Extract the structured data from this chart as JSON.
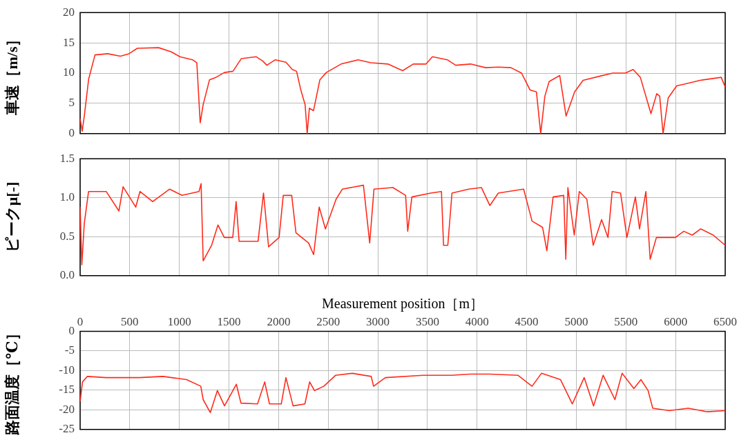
{
  "chart_data": [
    {
      "type": "line",
      "ylabel": "車速［m/s］",
      "color": "#ff2a1a",
      "grid": true,
      "tick_labels": "y",
      "xlim": [
        0,
        6500
      ],
      "xticks": [
        0,
        500,
        1000,
        1500,
        2000,
        2500,
        3000,
        3500,
        4000,
        4500,
        5000,
        5500,
        6000,
        6500
      ],
      "ylim": [
        0,
        20
      ],
      "yticks": [
        0,
        5,
        10,
        15,
        20
      ],
      "x": [
        0,
        21,
        43,
        86,
        150,
        278,
        406,
        492,
        577,
        791,
        920,
        1005,
        1133,
        1176,
        1210,
        1240,
        1304,
        1369,
        1454,
        1540,
        1625,
        1775,
        1839,
        1882,
        1967,
        2074,
        2138,
        2181,
        2224,
        2267,
        2288,
        2310,
        2352,
        2416,
        2481,
        2630,
        2801,
        2930,
        3101,
        3250,
        3357,
        3486,
        3550,
        3700,
        3785,
        3935,
        4085,
        4213,
        4341,
        4448,
        4534,
        4598,
        4641,
        4683,
        4726,
        4833,
        4897,
        4983,
        5068,
        5239,
        5367,
        5495,
        5572,
        5645,
        5752,
        5810,
        5840,
        5874,
        5926,
        6011,
        6118,
        6246,
        6374,
        6460,
        6500
      ],
      "values": [
        2.5,
        0.4,
        3,
        9,
        13,
        13.2,
        12.8,
        13.2,
        14.1,
        14.2,
        13.5,
        12.7,
        12.2,
        11.7,
        1.8,
        4.8,
        8.9,
        9.3,
        10.1,
        10.3,
        12.4,
        12.7,
        12,
        11.3,
        12.2,
        11.8,
        10.6,
        10.3,
        7.2,
        4.8,
        0,
        4.2,
        3.8,
        8.9,
        10.1,
        11.5,
        12.2,
        11.7,
        11.5,
        10.4,
        11.5,
        11.5,
        12.7,
        12.2,
        11.3,
        11.5,
        10.9,
        11,
        10.9,
        10,
        7.2,
        6.9,
        0,
        6.2,
        8.6,
        9.6,
        2.9,
        6.9,
        8.8,
        9.5,
        10,
        10,
        10.6,
        9.3,
        3.3,
        6.6,
        6.2,
        0,
        5.9,
        7.9,
        8.3,
        8.8,
        9.1,
        9.3,
        7.7
      ]
    },
    {
      "type": "line",
      "ylabel": "ピークμ[-]",
      "color": "#ff2a1a",
      "grid": true,
      "tick_labels": "y",
      "xlim": [
        0,
        6500
      ],
      "xticks": [
        0,
        500,
        1000,
        1500,
        2000,
        2500,
        3000,
        3500,
        4000,
        4500,
        5000,
        5500,
        6000,
        6500
      ],
      "ylim": [
        0,
        1.5
      ],
      "yticks": [
        {
          "value": 0,
          "label": "0.0"
        },
        {
          "value": 0.5,
          "label": "0.5"
        },
        {
          "value": 1,
          "label": "1.0"
        },
        {
          "value": 1.5,
          "label": "1.5"
        }
      ],
      "x": [
        0,
        17,
        42,
        85,
        263,
        391,
        433,
        561,
        603,
        731,
        901,
        1028,
        1198,
        1219,
        1240,
        1325,
        1389,
        1453,
        1538,
        1572,
        1602,
        1793,
        1848,
        1899,
        2005,
        2047,
        2132,
        2175,
        2302,
        2353,
        2409,
        2472,
        2579,
        2642,
        2855,
        2918,
        2961,
        3152,
        3280,
        3301,
        3343,
        3534,
        3641,
        3662,
        3705,
        3747,
        3917,
        4044,
        4129,
        4214,
        4469,
        4554,
        4660,
        4703,
        4766,
        4873,
        4894,
        4915,
        4979,
        5030,
        5106,
        5170,
        5255,
        5319,
        5361,
        5446,
        5510,
        5595,
        5637,
        5701,
        5744,
        5807,
        5998,
        6083,
        6168,
        6253,
        6380,
        6500
      ],
      "values": [
        0.88,
        0.14,
        0.67,
        1.08,
        1.08,
        0.83,
        1.14,
        0.88,
        1.08,
        0.95,
        1.11,
        1.03,
        1.08,
        1.18,
        0.19,
        0.39,
        0.65,
        0.49,
        0.49,
        0.95,
        0.44,
        0.44,
        1.06,
        0.37,
        0.49,
        1.03,
        1.03,
        0.55,
        0.42,
        0.27,
        0.88,
        0.6,
        0.98,
        1.11,
        1.16,
        0.42,
        1.11,
        1.13,
        1.03,
        0.57,
        1.01,
        1.06,
        1.08,
        0.39,
        0.39,
        1.06,
        1.11,
        1.13,
        0.9,
        1.06,
        1.11,
        0.7,
        0.62,
        0.32,
        1.01,
        1.03,
        0.21,
        1.13,
        0.52,
        1.08,
        0.98,
        0.39,
        0.72,
        0.49,
        1.08,
        1.06,
        0.49,
        1.01,
        0.6,
        1.08,
        0.21,
        0.49,
        0.49,
        0.57,
        0.52,
        0.6,
        0.52,
        0.39
      ]
    },
    {
      "type": "line",
      "ylabel": "路面温度［℃］",
      "xlabel": "Measurement position［m］",
      "color": "#ff2a1a",
      "grid": true,
      "xlim": [
        0,
        6500
      ],
      "xticks": [
        0,
        500,
        1000,
        1500,
        2000,
        2500,
        3000,
        3500,
        4000,
        4500,
        5000,
        5500,
        6000,
        6500
      ],
      "ylim": [
        -25,
        0
      ],
      "yticks": [
        -25,
        -20,
        -15,
        -10,
        -5,
        0
      ],
      "x": [
        0,
        24,
        72,
        262,
        596,
        835,
        1073,
        1216,
        1240,
        1312,
        1383,
        1455,
        1574,
        1621,
        1788,
        1860,
        1908,
        2027,
        2074,
        2146,
        2265,
        2313,
        2361,
        2456,
        2575,
        2742,
        2933,
        2957,
        3076,
        3457,
        3743,
        3934,
        4125,
        4411,
        4554,
        4649,
        4840,
        4960,
        5079,
        5174,
        5270,
        5389,
        5461,
        5580,
        5651,
        5723,
        5770,
        5937,
        6128,
        6319,
        6500
      ],
      "values": [
        -17.9,
        -12.9,
        -11.5,
        -11.8,
        -11.8,
        -11.5,
        -12.3,
        -14,
        -17.4,
        -20.7,
        -15.1,
        -19,
        -13.5,
        -18.3,
        -18.5,
        -12.9,
        -18.5,
        -18.5,
        -11.8,
        -19,
        -18.5,
        -12.9,
        -15.1,
        -14,
        -11.2,
        -10.7,
        -11.5,
        -14,
        -11.8,
        -11.2,
        -11.2,
        -10.9,
        -10.9,
        -11.2,
        -14,
        -10.7,
        -12.3,
        -18.5,
        -11.8,
        -19,
        -11.2,
        -17.4,
        -10.7,
        -14.6,
        -12.3,
        -15.1,
        -19.6,
        -20.2,
        -19.6,
        -20.5,
        -20.2
      ]
    }
  ]
}
